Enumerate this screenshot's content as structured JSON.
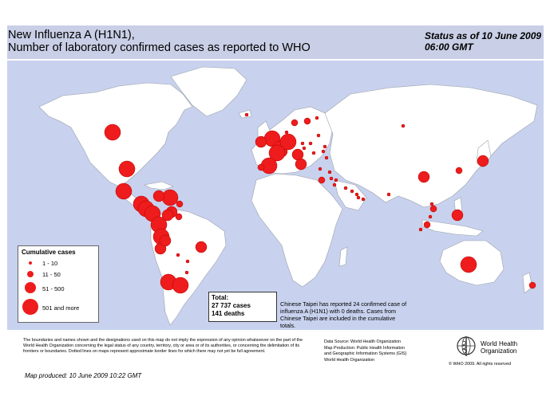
{
  "title_line1": "New Influenza A (H1N1),",
  "title_line2": "Number of  laboratory confirmed cases as reported to WHO",
  "status_line1": "Status as of 10 June 2009",
  "status_line2": "06:00 GMT",
  "colors": {
    "ocean": "#c8d2ee",
    "land": "#ffffff",
    "border": "#9aa0aa",
    "case_dot": "#ee1c1c",
    "header_band": "#c9cfe6"
  },
  "legend": {
    "title": "Cumulative cases",
    "items": [
      {
        "label": "1 - 10",
        "size": "smallest"
      },
      {
        "label": "11 - 50",
        "size": "small"
      },
      {
        "label": "51 - 500",
        "size": "medium"
      },
      {
        "label": "501 and more",
        "size": "large"
      }
    ]
  },
  "total": {
    "heading": "Total:",
    "cases": "27 737 cases",
    "deaths": "141 deaths"
  },
  "taipei_note": "Chinese Taipei has reported 24 confirmed case of influenza A (H1N1) with 0 deaths. Cases from Chinese Taipei are included in the cumulative totals.",
  "disclaimer": "The boundaries and names shown and the designations used on this map do not imply the expression of any opinion whatsoever on the part of the World Health Organization concerning the legal status of any country, territory, city or area or of its authorities, or concerning the delimitation of its frontiers or boundaries. Dotted lines on maps represent approximate border lines for which there may not yet be full agreement.",
  "map_produced": "Map produced: 10 June 2009 10:22 GMT",
  "source_lines": [
    "Data Source: World Health Organization",
    "Map Production: Public Health Information",
    "and Geographic Information Systems (GIS)",
    "World Health Organization"
  ],
  "copyright": "© WHO 2009. All rights reserved",
  "who_name_line1": "World Health",
  "who_name_line2": "Organization",
  "case_markers": [
    {
      "location": "Canada",
      "size": "large"
    },
    {
      "location": "United States",
      "size": "large"
    },
    {
      "location": "Mexico",
      "size": "large"
    },
    {
      "location": "Guatemala",
      "size": "large"
    },
    {
      "location": "El Salvador",
      "size": "large"
    },
    {
      "location": "Honduras",
      "size": "large"
    },
    {
      "location": "Costa Rica",
      "size": "large"
    },
    {
      "location": "Panama",
      "size": "large"
    },
    {
      "location": "Dominican Republic",
      "size": "large"
    },
    {
      "location": "Cuba",
      "size": "medium"
    },
    {
      "location": "Jamaica",
      "size": "medium"
    },
    {
      "location": "Puerto Rico",
      "size": "small"
    },
    {
      "location": "Colombia",
      "size": "medium"
    },
    {
      "location": "Venezuela",
      "size": "small"
    },
    {
      "location": "Ecuador",
      "size": "medium"
    },
    {
      "location": "Peru",
      "size": "medium"
    },
    {
      "location": "Brazil",
      "size": "medium"
    },
    {
      "location": "Bolivia",
      "size": "smallest"
    },
    {
      "location": "Paraguay",
      "size": "smallest"
    },
    {
      "location": "Uruguay",
      "size": "smallest"
    },
    {
      "location": "Chile",
      "size": "large"
    },
    {
      "location": "Argentina",
      "size": "large"
    },
    {
      "location": "Iceland",
      "size": "smallest"
    },
    {
      "location": "United Kingdom",
      "size": "large"
    },
    {
      "location": "Ireland",
      "size": "medium"
    },
    {
      "location": "Norway",
      "size": "small"
    },
    {
      "location": "Sweden",
      "size": "small"
    },
    {
      "location": "Finland",
      "size": "smallest"
    },
    {
      "location": "Denmark",
      "size": "smallest"
    },
    {
      "location": "Netherlands",
      "size": "medium"
    },
    {
      "location": "Belgium",
      "size": "medium"
    },
    {
      "location": "Germany",
      "size": "large"
    },
    {
      "location": "France",
      "size": "large"
    },
    {
      "location": "Spain",
      "size": "large"
    },
    {
      "location": "Portugal",
      "size": "small"
    },
    {
      "location": "Switzerland",
      "size": "medium"
    },
    {
      "location": "Italy",
      "size": "medium"
    },
    {
      "location": "Austria",
      "size": "smallest"
    },
    {
      "location": "Poland",
      "size": "smallest"
    },
    {
      "location": "Czech Republic",
      "size": "smallest"
    },
    {
      "location": "Hungary",
      "size": "smallest"
    },
    {
      "location": "Romania",
      "size": "smallest"
    },
    {
      "location": "Bulgaria",
      "size": "smallest"
    },
    {
      "location": "Greece",
      "size": "smallest"
    },
    {
      "location": "Turkey",
      "size": "smallest"
    },
    {
      "location": "Russia",
      "size": "smallest"
    },
    {
      "location": "Estonia",
      "size": "smallest"
    },
    {
      "location": "Ukraine",
      "size": "smallest"
    },
    {
      "location": "Cyprus",
      "size": "smallest"
    },
    {
      "location": "Lebanon",
      "size": "smallest"
    },
    {
      "location": "Israel",
      "size": "smallest"
    },
    {
      "location": "Egypt",
      "size": "small"
    },
    {
      "location": "Saudi Arabia",
      "size": "smallest"
    },
    {
      "location": "Kuwait",
      "size": "smallest"
    },
    {
      "location": "Bahrain",
      "size": "smallest"
    },
    {
      "location": "Qatar",
      "size": "smallest"
    },
    {
      "location": "United Arab Emirates",
      "size": "smallest"
    },
    {
      "location": "India",
      "size": "smallest"
    },
    {
      "location": "China",
      "size": "medium"
    },
    {
      "location": "Korea",
      "size": "small"
    },
    {
      "location": "Japan",
      "size": "medium"
    },
    {
      "location": "Viet Nam",
      "size": "smallest"
    },
    {
      "location": "Thailand",
      "size": "small"
    },
    {
      "location": "Philippines",
      "size": "medium"
    },
    {
      "location": "Malaysia",
      "size": "smallest"
    },
    {
      "location": "Singapore",
      "size": "small"
    },
    {
      "location": "Indonesia",
      "size": "smallest"
    },
    {
      "location": "Australia",
      "size": "large"
    },
    {
      "location": "New Zealand",
      "size": "small"
    }
  ]
}
